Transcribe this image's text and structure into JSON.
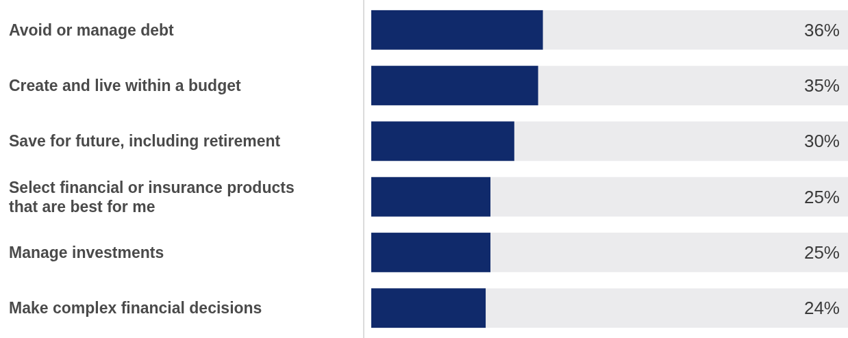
{
  "chart_data": {
    "type": "bar",
    "orientation": "horizontal",
    "categories": [
      "Avoid or manage debt",
      "Create and live within a budget",
      "Save for future, including retirement",
      "Select financial or insurance products that are best for me",
      "Manage investments",
      "Make complex financial decisions"
    ],
    "series": [
      {
        "color": "#102a6b",
        "values": [
          36,
          35,
          30,
          25,
          25,
          24
        ],
        "value_labels": [
          "36%",
          "35%",
          "30%",
          "25%",
          "25%",
          "24%"
        ]
      }
    ],
    "xlim": [
      0,
      100
    ]
  }
}
